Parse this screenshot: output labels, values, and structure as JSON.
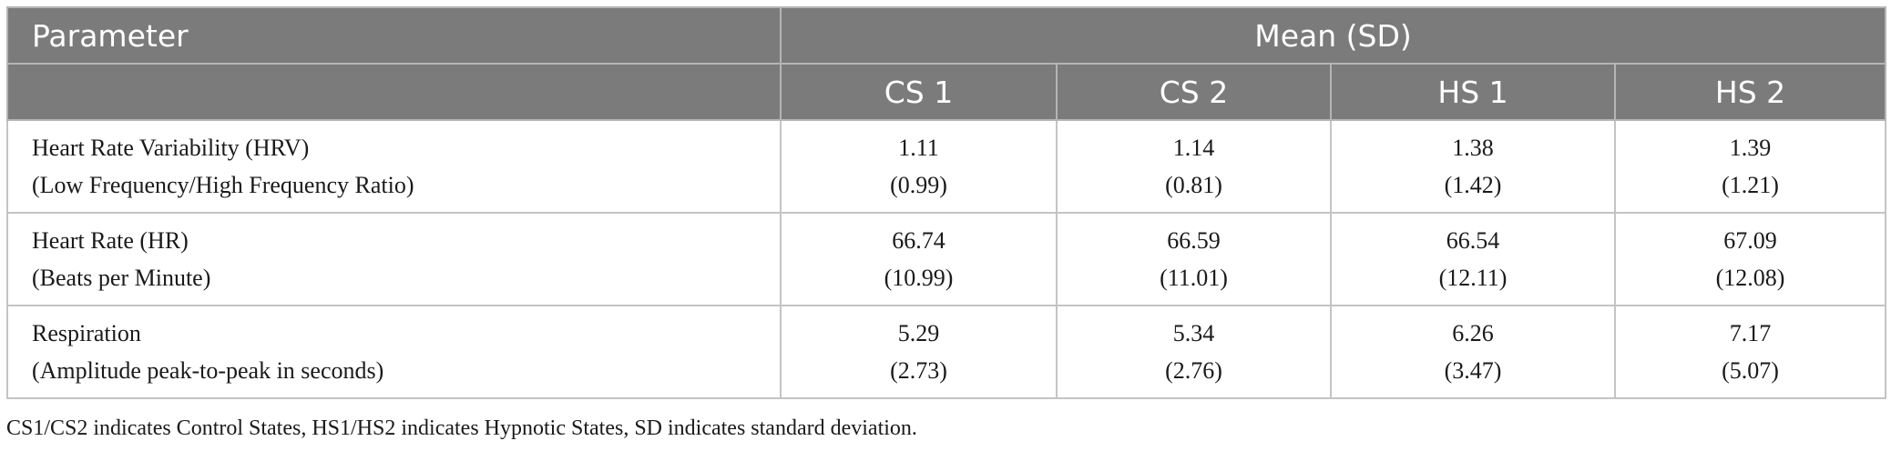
{
  "table": {
    "header_parameter": "Parameter",
    "header_group": "Mean (SD)",
    "columns": [
      "CS 1",
      "CS 2",
      "HS 1",
      "HS 2"
    ],
    "rows": [
      {
        "param_line1": "Heart Rate Variability (HRV)",
        "param_line2": "(Low Frequency/High Frequency Ratio)",
        "cells": [
          {
            "mean": "1.11",
            "sd": "(0.99)"
          },
          {
            "mean": "1.14",
            "sd": "(0.81)"
          },
          {
            "mean": "1.38",
            "sd": "(1.42)"
          },
          {
            "mean": "1.39",
            "sd": "(1.21)"
          }
        ]
      },
      {
        "param_line1": "Heart Rate (HR)",
        "param_line2": "(Beats per Minute)",
        "cells": [
          {
            "mean": "66.74",
            "sd": "(10.99)"
          },
          {
            "mean": "66.59",
            "sd": "(11.01)"
          },
          {
            "mean": "66.54",
            "sd": "(12.11)"
          },
          {
            "mean": "67.09",
            "sd": "(12.08)"
          }
        ]
      },
      {
        "param_line1": "Respiration",
        "param_line2": "(Amplitude peak-to-peak in seconds)",
        "cells": [
          {
            "mean": "5.29",
            "sd": "(2.73)"
          },
          {
            "mean": "5.34",
            "sd": "(2.76)"
          },
          {
            "mean": "6.26",
            "sd": "(3.47)"
          },
          {
            "mean": "7.17",
            "sd": "(5.07)"
          }
        ]
      }
    ]
  },
  "footnote": "CS1/CS2 indicates Control States, HS1/HS2 indicates Hypnotic States, SD indicates standard deviation.",
  "colors": {
    "header_bg": "#7b7b7b",
    "header_text": "#ffffff",
    "border": "#c4c4c4"
  }
}
